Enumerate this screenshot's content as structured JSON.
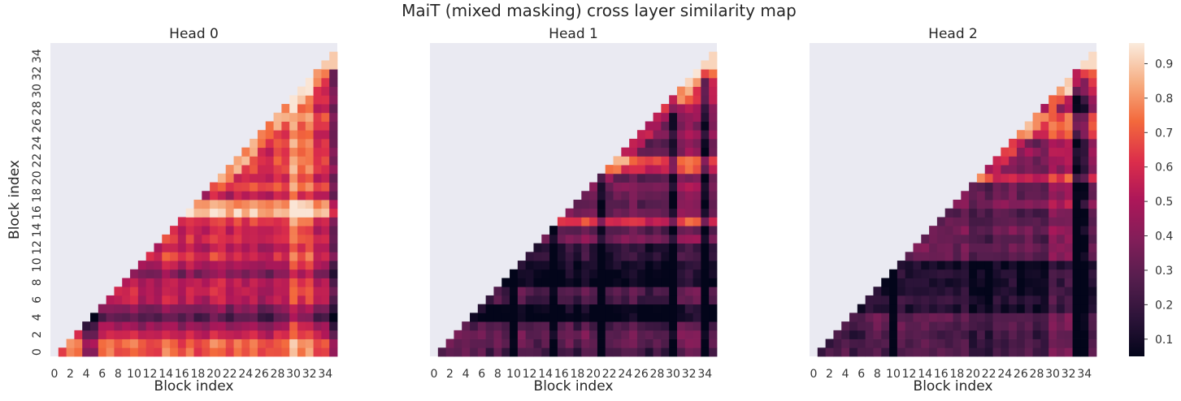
{
  "chart_data": {
    "type": "heatmap",
    "title": "MaiT (mixed masking) cross layer similarity map",
    "xlabel": "Block index",
    "ylabel": "Block index",
    "tick_labels": [
      "0",
      "2",
      "4",
      "6",
      "8",
      "10",
      "12",
      "14",
      "16",
      "18",
      "20",
      "22",
      "24",
      "26",
      "28",
      "30",
      "32",
      "34"
    ],
    "n": 36,
    "mask": "cells with x < y are empty (lower-left triangle shown)",
    "colormap": "rocket",
    "colorbar": {
      "ticks": [
        0.1,
        0.2,
        0.3,
        0.4,
        0.5,
        0.6,
        0.7,
        0.8,
        0.9
      ],
      "range": [
        0.05,
        0.96
      ]
    },
    "panels": [
      {
        "title": "Head 0",
        "base": 0.55,
        "seed": 11,
        "dark_cols": [
          4,
          5,
          35
        ],
        "bright_cols": [
          30,
          31,
          32
        ],
        "bright_rows": [
          0,
          1,
          16,
          17
        ],
        "dark_rows": [
          4,
          5,
          9
        ],
        "corner": 0.9
      },
      {
        "title": "Head 1",
        "base": 0.3,
        "seed": 23,
        "dark_cols": [
          10,
          15,
          21,
          30,
          34
        ],
        "bright_cols": [
          31,
          32,
          33
        ],
        "bright_rows": [
          15,
          21,
          22,
          29,
          30,
          31,
          32
        ],
        "dark_rows": [
          4,
          5,
          8,
          9,
          10,
          11,
          12
        ],
        "corner": 0.92
      },
      {
        "title": "Head 2",
        "base": 0.3,
        "seed": 37,
        "dark_cols": [
          10,
          33,
          34
        ],
        "bright_cols": [
          30,
          31,
          32
        ],
        "bright_rows": [
          20,
          25,
          26,
          27,
          30,
          31,
          32,
          33
        ],
        "dark_rows": [
          5,
          6,
          7,
          8,
          9,
          10
        ],
        "corner": 0.93
      }
    ]
  }
}
